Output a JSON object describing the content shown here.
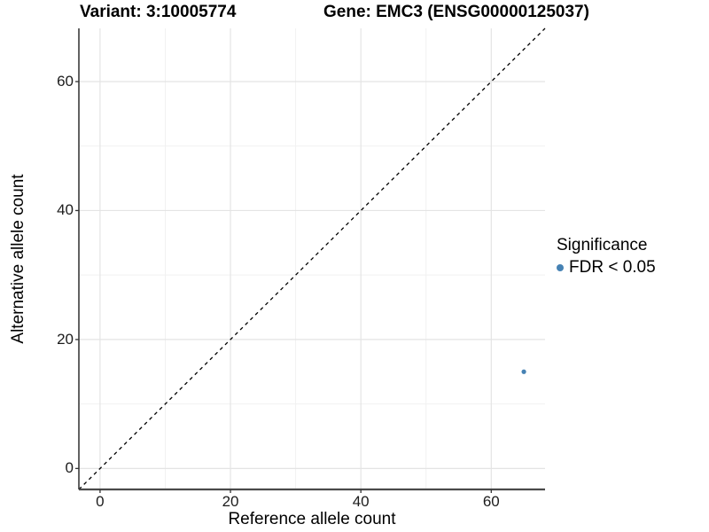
{
  "chart_data": {
    "type": "scatter",
    "title_left": "Variant: 3:10005774",
    "title_right": "Gene: EMC3 (ENSG00000125037)",
    "xlabel": "Reference allele count",
    "ylabel": "Alternative allele count",
    "xlim": [
      -3.25,
      68.25
    ],
    "ylim": [
      -3.25,
      68.25
    ],
    "x_ticks": [
      0,
      20,
      40,
      60
    ],
    "y_ticks": [
      0,
      20,
      40,
      60
    ],
    "x_minor_ticks": [
      10,
      30,
      50
    ],
    "y_minor_ticks": [
      10,
      30,
      50
    ],
    "grid": true,
    "series": [
      {
        "name": "FDR < 0.05",
        "color": "#4682B4",
        "points": [
          {
            "x": 65,
            "y": 15
          }
        ]
      }
    ],
    "reference_line": {
      "style": "dashed",
      "slope": 1,
      "intercept": 0,
      "color": "#000000"
    },
    "legend": {
      "title": "Significance",
      "position": "right",
      "items": [
        {
          "label": "FDR < 0.05",
          "color": "#4682B4"
        }
      ]
    },
    "style": {
      "point_color": "#4682B4",
      "grid_major_color": "#e4e4e4",
      "grid_minor_color": "#f1f1f1",
      "axis_line_color": "#2e2e2e",
      "background": "#ffffff"
    }
  }
}
